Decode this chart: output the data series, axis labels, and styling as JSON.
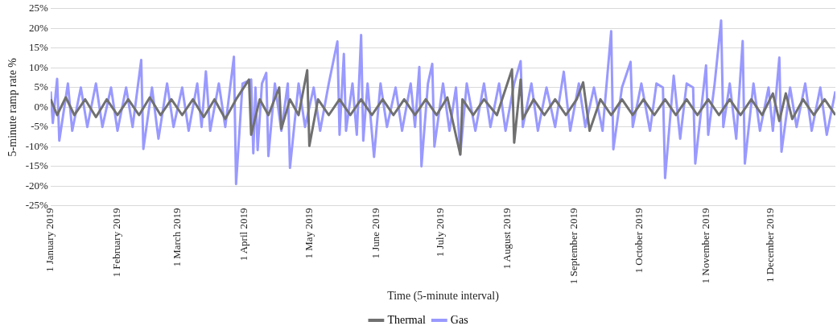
{
  "chart_data": {
    "type": "line",
    "xlabel": "Time (5-minute interval)",
    "ylabel": "5-minute ramp rate %",
    "xlim": [
      "2019-01-01",
      "2019-12-31"
    ],
    "xticks": [
      {
        "value": "2019-01-01",
        "label": "1 January 2019"
      },
      {
        "value": "2019-02-01",
        "label": "1 February 2019"
      },
      {
        "value": "2019-03-01",
        "label": "1 March 2019"
      },
      {
        "value": "2019-04-01",
        "label": "1 April 2019"
      },
      {
        "value": "2019-05-01",
        "label": "1 May 2019"
      },
      {
        "value": "2019-06-01",
        "label": "1 June 2019"
      },
      {
        "value": "2019-07-01",
        "label": "1 July 2019"
      },
      {
        "value": "2019-08-01",
        "label": "1 August 2019"
      },
      {
        "value": "2019-09-01",
        "label": "1 September 2019"
      },
      {
        "value": "2019-10-01",
        "label": "1 October 2019"
      },
      {
        "value": "2019-11-01",
        "label": "1 November 2019"
      },
      {
        "value": "2019-12-01",
        "label": "1 December 2019"
      }
    ],
    "ylim": [
      -25,
      25
    ],
    "yticks": [
      {
        "value": -25,
        "label": "-25%"
      },
      {
        "value": -20,
        "label": "-20%"
      },
      {
        "value": -15,
        "label": "-15%"
      },
      {
        "value": -10,
        "label": "-10%"
      },
      {
        "value": -5,
        "label": "-5%"
      },
      {
        "value": 0,
        "label": "0%"
      },
      {
        "value": 5,
        "label": "5%"
      },
      {
        "value": 10,
        "label": "10%"
      },
      {
        "value": 15,
        "label": "15%"
      },
      {
        "value": 20,
        "label": "20%"
      },
      {
        "value": 25,
        "label": "25%"
      }
    ],
    "grid": "y",
    "legend": "bottom",
    "marker": "none",
    "series": [
      {
        "name": "Thermal",
        "color": "#707070",
        "x": [
          "2019-01-01",
          "2019-01-04",
          "2019-01-08",
          "2019-01-12",
          "2019-01-17",
          "2019-01-22",
          "2019-01-27",
          "2019-02-01",
          "2019-02-06",
          "2019-02-11",
          "2019-02-16",
          "2019-02-21",
          "2019-02-26",
          "2019-03-03",
          "2019-03-08",
          "2019-03-13",
          "2019-03-18",
          "2019-03-23",
          "2019-03-28",
          "2019-04-03",
          "2019-04-04",
          "2019-04-08",
          "2019-04-12",
          "2019-04-17",
          "2019-04-18",
          "2019-04-22",
          "2019-04-26",
          "2019-04-30",
          "2019-05-01",
          "2019-05-05",
          "2019-05-10",
          "2019-05-15",
          "2019-05-20",
          "2019-05-25",
          "2019-05-30",
          "2019-06-04",
          "2019-06-09",
          "2019-06-14",
          "2019-06-19",
          "2019-06-24",
          "2019-06-29",
          "2019-07-04",
          "2019-07-10",
          "2019-07-11",
          "2019-07-16",
          "2019-07-21",
          "2019-07-27",
          "2019-08-03",
          "2019-08-04",
          "2019-08-07",
          "2019-08-08",
          "2019-08-13",
          "2019-08-18",
          "2019-08-23",
          "2019-08-28",
          "2019-09-02",
          "2019-09-05",
          "2019-09-08",
          "2019-09-13",
          "2019-09-18",
          "2019-09-23",
          "2019-09-28",
          "2019-10-03",
          "2019-10-08",
          "2019-10-13",
          "2019-10-18",
          "2019-10-23",
          "2019-10-28",
          "2019-11-02",
          "2019-11-07",
          "2019-11-12",
          "2019-11-17",
          "2019-11-22",
          "2019-11-27",
          "2019-12-02",
          "2019-12-05",
          "2019-12-08",
          "2019-12-11",
          "2019-12-16",
          "2019-12-21",
          "2019-12-26",
          "2019-12-31"
        ],
        "values": [
          2,
          -2,
          2.5,
          -2,
          2,
          -2.5,
          2,
          -2,
          2,
          -2,
          2.5,
          -2,
          2,
          -2,
          2,
          -2.5,
          2,
          -3,
          2,
          7,
          -7,
          2,
          -2,
          5,
          -5.5,
          2,
          -2,
          9.4,
          -9.8,
          2,
          -2,
          2,
          -2,
          2,
          -2,
          2,
          -2,
          2,
          -2,
          2,
          -2,
          2.5,
          -12,
          2,
          -2,
          2,
          -2,
          9.6,
          -9,
          7,
          -3,
          2,
          -2,
          2,
          -2,
          2,
          6.3,
          -6,
          2,
          -2,
          2,
          -2,
          2,
          -2,
          2,
          -2,
          2,
          -2,
          2,
          -2,
          2,
          -2,
          2,
          -2,
          3.5,
          -3.5,
          3.5,
          -3,
          2,
          -2,
          2,
          -2
        ]
      },
      {
        "name": "Gas",
        "color": "#9999ff",
        "x": [
          "2019-01-01",
          "2019-01-02",
          "2019-01-04",
          "2019-01-05",
          "2019-01-09",
          "2019-01-11",
          "2019-01-15",
          "2019-01-18",
          "2019-01-22",
          "2019-01-25",
          "2019-01-29",
          "2019-02-01",
          "2019-02-05",
          "2019-02-08",
          "2019-02-12",
          "2019-02-13",
          "2019-02-17",
          "2019-02-20",
          "2019-02-24",
          "2019-02-27",
          "2019-03-03",
          "2019-03-06",
          "2019-03-10",
          "2019-03-12",
          "2019-03-14",
          "2019-03-16",
          "2019-03-20",
          "2019-03-23",
          "2019-03-27",
          "2019-03-28",
          "2019-03-31",
          "2019-04-04",
          "2019-04-05",
          "2019-04-06",
          "2019-04-07",
          "2019-04-09",
          "2019-04-11",
          "2019-04-12",
          "2019-04-15",
          "2019-04-18",
          "2019-04-21",
          "2019-04-22",
          "2019-04-26",
          "2019-04-29",
          "2019-05-03",
          "2019-05-06",
          "2019-05-10",
          "2019-05-14",
          "2019-05-15",
          "2019-05-17",
          "2019-05-18",
          "2019-05-21",
          "2019-05-23",
          "2019-05-25",
          "2019-05-26",
          "2019-05-28",
          "2019-05-31",
          "2019-06-03",
          "2019-06-06",
          "2019-06-10",
          "2019-06-13",
          "2019-06-17",
          "2019-06-19",
          "2019-06-21",
          "2019-06-22",
          "2019-06-25",
          "2019-06-27",
          "2019-06-28",
          "2019-07-02",
          "2019-07-05",
          "2019-07-08",
          "2019-07-10",
          "2019-07-13",
          "2019-07-17",
          "2019-07-21",
          "2019-07-24",
          "2019-07-28",
          "2019-07-31",
          "2019-08-04",
          "2019-08-07",
          "2019-08-08",
          "2019-08-12",
          "2019-08-15",
          "2019-08-19",
          "2019-08-23",
          "2019-08-27",
          "2019-08-30",
          "2019-09-03",
          "2019-09-06",
          "2019-09-10",
          "2019-09-14",
          "2019-09-18",
          "2019-09-19",
          "2019-09-23",
          "2019-09-27",
          "2019-09-28",
          "2019-10-02",
          "2019-10-06",
          "2019-10-09",
          "2019-10-12",
          "2019-10-13",
          "2019-10-17",
          "2019-10-20",
          "2019-10-23",
          "2019-10-26",
          "2019-10-27",
          "2019-11-01",
          "2019-11-02",
          "2019-11-05",
          "2019-11-08",
          "2019-11-09",
          "2019-11-12",
          "2019-11-15",
          "2019-11-18",
          "2019-11-19",
          "2019-11-23",
          "2019-11-26",
          "2019-11-30",
          "2019-12-02",
          "2019-12-05",
          "2019-12-06",
          "2019-12-10",
          "2019-12-13",
          "2019-12-17",
          "2019-12-20",
          "2019-12-24",
          "2019-12-27",
          "2019-12-31"
        ],
        "values": [
          4,
          -4,
          7.2,
          -8.5,
          6,
          -6,
          5,
          -5,
          6,
          -5,
          5,
          -6,
          5,
          -5,
          12,
          -10.6,
          5,
          -8,
          6,
          -5,
          5,
          -6,
          6,
          -5,
          9.1,
          -6,
          6,
          -5,
          12.8,
          -19.5,
          6,
          7,
          -11.7,
          5,
          -10.9,
          6,
          8.7,
          -12.4,
          6,
          -6,
          6,
          -15.4,
          6,
          -5,
          5,
          -6,
          6,
          16.7,
          -7,
          13.5,
          -6,
          6,
          -7,
          18.3,
          -8.5,
          6,
          -12.6,
          6,
          -5,
          5,
          -6,
          6,
          -5,
          10.2,
          -15,
          6,
          11,
          -10,
          6,
          -6,
          5,
          -12,
          6,
          -6,
          6,
          -5,
          6,
          -6,
          6,
          11.7,
          -5,
          6,
          -6,
          5,
          -5,
          9,
          -6,
          6,
          -5,
          5,
          -6,
          19.3,
          -10.7,
          5,
          11.5,
          -5,
          6,
          -6,
          6,
          5,
          -18,
          8,
          -8,
          6,
          5,
          -14.3,
          10.6,
          -7,
          6,
          22,
          -5,
          6,
          -8,
          16.8,
          -14.3,
          6,
          -6,
          5,
          -6,
          12.6,
          -11.3,
          5,
          -5,
          6,
          -6,
          5,
          -7,
          4
        ]
      }
    ]
  }
}
